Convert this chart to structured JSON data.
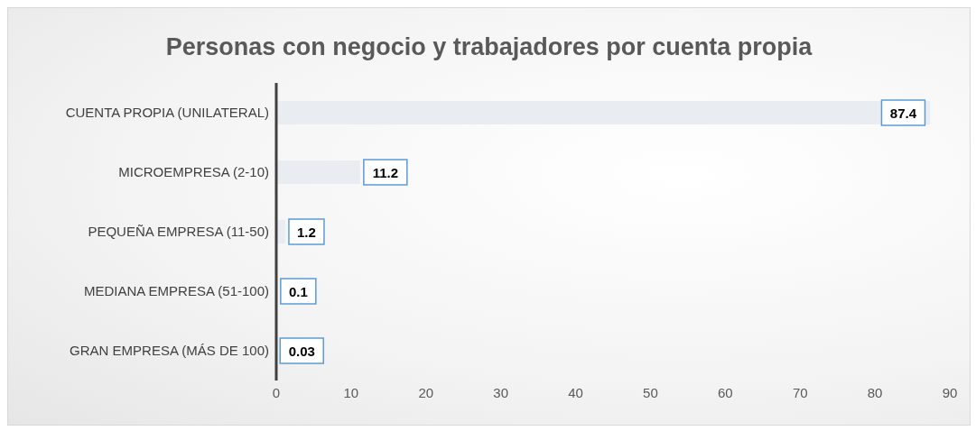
{
  "chart_data": {
    "type": "bar",
    "orientation": "horizontal",
    "title": "Personas con negocio y trabajadores por cuenta propia",
    "categories": [
      "CUENTA PROPIA (UNILATERAL)",
      "MICROEMPRESA (2-10)",
      "PEQUEÑA EMPRESA (11-50)",
      "MEDIANA EMPRESA (51-100)",
      "GRAN EMPRESA (MÁS DE 100)"
    ],
    "values": [
      87.4,
      11.2,
      1.2,
      0.1,
      0.03
    ],
    "color": "#e9edf2",
    "xlim": [
      0,
      90
    ],
    "xticks": [
      0,
      10,
      20,
      30,
      40,
      50,
      60,
      70,
      80,
      90
    ],
    "grid": false,
    "legend": false,
    "data_labels": true
  }
}
